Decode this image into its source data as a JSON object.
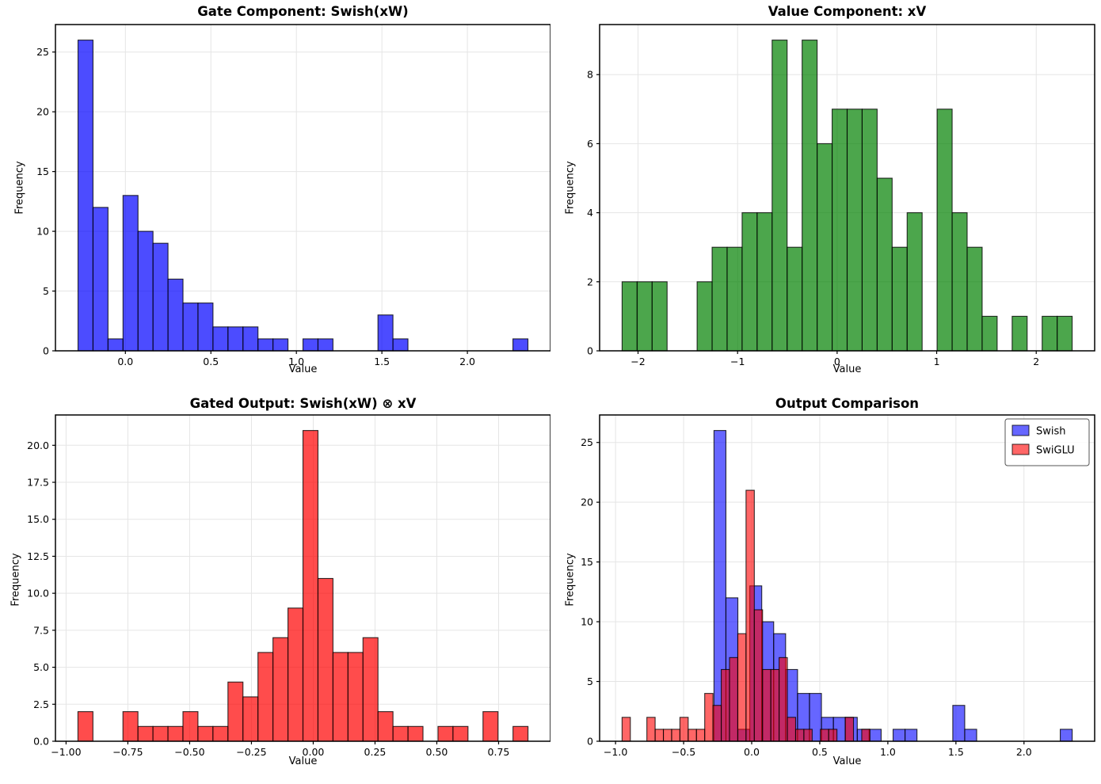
{
  "figure": {
    "background": "#ffffff",
    "text_color": "#000000",
    "grid_color": "#e5e5e5",
    "spine_color": "#000000"
  },
  "chart_data": [
    {
      "type": "histogram",
      "title": "Gate Component: Swish(xW)",
      "xlabel": "Value",
      "ylabel": "Frequency",
      "grid": true,
      "xlim": [
        -0.409,
        2.486
      ],
      "ylim": [
        0,
        27.3
      ],
      "xticks": [
        {
          "v": 0.0,
          "label": "0.0"
        },
        {
          "v": 0.5,
          "label": "0.5"
        },
        {
          "v": 1.0,
          "label": "1.0"
        },
        {
          "v": 1.5,
          "label": "1.5"
        },
        {
          "v": 2.0,
          "label": "2.0"
        }
      ],
      "yticks": [
        {
          "v": 0,
          "label": "0"
        },
        {
          "v": 5,
          "label": "5"
        },
        {
          "v": 10,
          "label": "10"
        },
        {
          "v": 15,
          "label": "15"
        },
        {
          "v": 20,
          "label": "20"
        },
        {
          "v": 25,
          "label": "25"
        }
      ],
      "series": [
        {
          "name": "Swish(xW)",
          "color": "#0000FF",
          "alpha": 0.7,
          "edge_color": "#000000",
          "edge_alpha": 0.8,
          "bin_start": -0.277,
          "bin_width": 0.0877,
          "counts": [
            26,
            12,
            1,
            13,
            10,
            9,
            6,
            4,
            4,
            2,
            2,
            2,
            1,
            1,
            0,
            1,
            1,
            0,
            0,
            0,
            3,
            1,
            0,
            0,
            0,
            0,
            0,
            0,
            0,
            1
          ]
        }
      ]
    },
    {
      "type": "histogram",
      "title": "Value Component: xV",
      "xlabel": "Value",
      "ylabel": "Frequency",
      "grid": true,
      "xlim": [
        -2.386,
        2.587
      ],
      "ylim": [
        0,
        9.45
      ],
      "xticks": [
        {
          "v": -2,
          "label": "−2"
        },
        {
          "v": -1,
          "label": "−1"
        },
        {
          "v": 0,
          "label": "0"
        },
        {
          "v": 1,
          "label": "1"
        },
        {
          "v": 2,
          "label": "2"
        }
      ],
      "yticks": [
        {
          "v": 0,
          "label": "0"
        },
        {
          "v": 2,
          "label": "2"
        },
        {
          "v": 4,
          "label": "4"
        },
        {
          "v": 6,
          "label": "6"
        },
        {
          "v": 8,
          "label": "8"
        }
      ],
      "series": [
        {
          "name": "xV",
          "color": "#008000",
          "alpha": 0.7,
          "edge_color": "#000000",
          "edge_alpha": 0.8,
          "bin_start": -2.16,
          "bin_width": 0.1507,
          "counts": [
            2,
            2,
            2,
            0,
            0,
            2,
            3,
            3,
            4,
            4,
            9,
            3,
            9,
            6,
            7,
            7,
            7,
            5,
            3,
            4,
            0,
            7,
            4,
            3,
            1,
            0,
            1,
            0,
            1,
            1
          ]
        }
      ]
    },
    {
      "type": "histogram",
      "title": "Gated Output: Swish(xW) ⊗ xV",
      "xlabel": "Value",
      "ylabel": "Frequency",
      "grid": true,
      "xlim": [
        -1.043,
        0.96
      ],
      "ylim": [
        0,
        22.05
      ],
      "xticks": [
        {
          "v": -1.0,
          "label": "−1.00"
        },
        {
          "v": -0.75,
          "label": "−0.75"
        },
        {
          "v": -0.5,
          "label": "−0.50"
        },
        {
          "v": -0.25,
          "label": "−0.25"
        },
        {
          "v": 0.0,
          "label": "0.00"
        },
        {
          "v": 0.25,
          "label": "0.25"
        },
        {
          "v": 0.5,
          "label": "0.50"
        },
        {
          "v": 0.75,
          "label": "0.75"
        }
      ],
      "yticks": [
        {
          "v": 0,
          "label": "0.0"
        },
        {
          "v": 2.5,
          "label": "2.5"
        },
        {
          "v": 5,
          "label": "5.0"
        },
        {
          "v": 7.5,
          "label": "7.5"
        },
        {
          "v": 10,
          "label": "10.0"
        },
        {
          "v": 12.5,
          "label": "12.5"
        },
        {
          "v": 15,
          "label": "15.0"
        },
        {
          "v": 17.5,
          "label": "17.5"
        },
        {
          "v": 20,
          "label": "20.0"
        }
      ],
      "series": [
        {
          "name": "SwiGLU",
          "color": "#FF0000",
          "alpha": 0.7,
          "edge_color": "#000000",
          "edge_alpha": 0.8,
          "bin_start": -0.952,
          "bin_width": 0.0607,
          "counts": [
            2,
            0,
            0,
            2,
            1,
            1,
            1,
            2,
            1,
            1,
            4,
            3,
            6,
            7,
            9,
            21,
            11,
            6,
            6,
            7,
            2,
            1,
            1,
            0,
            1,
            1,
            0,
            2,
            0,
            1
          ]
        }
      ]
    },
    {
      "type": "histogram",
      "title": "Output Comparison",
      "xlabel": "Value",
      "ylabel": "Frequency",
      "grid": true,
      "xlim": [
        -1.117,
        2.519
      ],
      "ylim": [
        0,
        27.3
      ],
      "xticks": [
        {
          "v": -1.0,
          "label": "−1.0"
        },
        {
          "v": -0.5,
          "label": "−0.5"
        },
        {
          "v": 0.0,
          "label": "0.0"
        },
        {
          "v": 0.5,
          "label": "0.5"
        },
        {
          "v": 1.0,
          "label": "1.0"
        },
        {
          "v": 1.5,
          "label": "1.5"
        },
        {
          "v": 2.0,
          "label": "2.0"
        }
      ],
      "yticks": [
        {
          "v": 0,
          "label": "0"
        },
        {
          "v": 5,
          "label": "5"
        },
        {
          "v": 10,
          "label": "10"
        },
        {
          "v": 15,
          "label": "15"
        },
        {
          "v": 20,
          "label": "20"
        },
        {
          "v": 25,
          "label": "25"
        }
      ],
      "series": [
        {
          "name": "Swish",
          "color": "#0000FF",
          "alpha": 0.6,
          "edge_color": "#000000",
          "edge_alpha": 0.8,
          "bin_start": -0.277,
          "bin_width": 0.0877,
          "counts": [
            26,
            12,
            1,
            13,
            10,
            9,
            6,
            4,
            4,
            2,
            2,
            2,
            1,
            1,
            0,
            1,
            1,
            0,
            0,
            0,
            3,
            1,
            0,
            0,
            0,
            0,
            0,
            0,
            0,
            1
          ]
        },
        {
          "name": "SwiGLU",
          "color": "#FF0000",
          "alpha": 0.6,
          "edge_color": "#000000",
          "edge_alpha": 0.8,
          "bin_start": -0.952,
          "bin_width": 0.0607,
          "counts": [
            2,
            0,
            0,
            2,
            1,
            1,
            1,
            2,
            1,
            1,
            4,
            3,
            6,
            7,
            9,
            21,
            11,
            6,
            6,
            7,
            2,
            1,
            1,
            0,
            1,
            1,
            0,
            2,
            0,
            1
          ]
        }
      ],
      "legend": {
        "entries": [
          {
            "label": "Swish",
            "swatch": "#6666FF"
          },
          {
            "label": "SwiGLU",
            "swatch": "#FF6666"
          }
        ]
      }
    }
  ]
}
